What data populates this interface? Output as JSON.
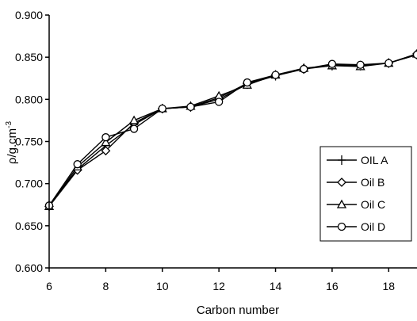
{
  "chart_data": {
    "type": "line",
    "title": "",
    "xlabel": "Carbon number",
    "ylabel": "ρ/g.cm",
    "ylabel_superscript": "-3",
    "xlim": [
      6,
      19
    ],
    "ylim": [
      0.6,
      0.9
    ],
    "xticks": [
      6,
      8,
      10,
      12,
      14,
      16,
      18
    ],
    "yticks": [
      "0.600",
      "0.650",
      "0.700",
      "0.750",
      "0.800",
      "0.850",
      "0.900"
    ],
    "grid": false,
    "legend_position": "right",
    "x": [
      6,
      7,
      8,
      9,
      10,
      11,
      12,
      13,
      14,
      15,
      16,
      17,
      18,
      19
    ],
    "series": [
      {
        "name": "OIL A",
        "marker": "plus",
        "values": [
          0.674,
          0.717,
          0.745,
          0.77,
          0.789,
          0.791,
          0.8,
          0.818,
          0.828,
          0.836,
          0.84,
          0.84,
          0.843,
          0.853
        ]
      },
      {
        "name": "Oil B",
        "marker": "diamond",
        "values": [
          0.673,
          0.716,
          0.739,
          0.772,
          0.789,
          0.791,
          0.802,
          0.819,
          0.829,
          0.836,
          0.841,
          0.84,
          0.843,
          0.854
        ]
      },
      {
        "name": "Oil C",
        "marker": "triangle",
        "values": [
          0.673,
          0.72,
          0.749,
          0.775,
          0.789,
          0.792,
          0.804,
          0.817,
          0.829,
          0.837,
          0.84,
          0.839,
          0.843,
          0.854
        ]
      },
      {
        "name": "Oil D",
        "marker": "circle",
        "values": [
          0.674,
          0.723,
          0.755,
          0.765,
          0.789,
          0.791,
          0.797,
          0.82,
          0.829,
          0.836,
          0.842,
          0.841,
          0.843,
          0.853
        ]
      }
    ]
  }
}
